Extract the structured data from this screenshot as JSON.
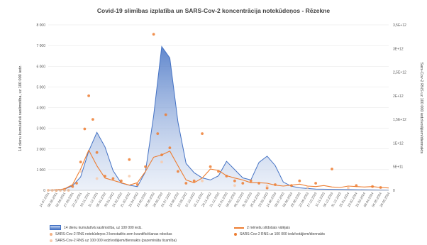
{
  "chart_data": {
    "type": "line",
    "title": "Covid-19 slimības izplatība un SARS-Cov-2 koncentrācija notekūdeņos - Rēzekne",
    "ylabel": "14 dienu kumulatīvā saslimstība, uz 100 000 iedz.",
    "y2label": "Sars-Cov-2 RNS uz 100 000 iedzīvotājiem/diennakts",
    "ylim": [
      0,
      8000
    ],
    "yticks": [
      "0",
      "1 000",
      "2 000",
      "3 000",
      "4 000",
      "5 000",
      "6 000",
      "7 000",
      "8 000"
    ],
    "y2ticks": [
      "0",
      "5E+11",
      "1E+12",
      "1,5E+12",
      "2E+12",
      "2,5E+12",
      "3E+12",
      "3,5E+12"
    ],
    "y2tick_values": [
      0,
      500000000000.0,
      1000000000000.0,
      1500000000000.0,
      2000000000000.0,
      2500000000000.0,
      3000000000000.0,
      3500000000000.0
    ],
    "y2lim": [
      0,
      3500000000000.0
    ],
    "x_categories": [
      "14.07.2021",
      "08.08.2021",
      "02.09.2021",
      "27.09.2021",
      "22.10.2021",
      "16.11.2021",
      "11.12.2021",
      "05.01.2022",
      "30.01.2022",
      "24.02.2022",
      "21.03.2022",
      "15.04.2022",
      "10.05.2022",
      "04.06.2022",
      "29.06.2022",
      "24.07.2022",
      "18.08.2022",
      "12.09.2022",
      "07.10.2022",
      "01.11.2022",
      "26.11.2022",
      "21.12.2022",
      "15.01.2023",
      "09.02.2023",
      "06.03.2023",
      "31.03.2023",
      "25.04.2023",
      "20.05.2023",
      "14.06.2023",
      "09.07.2023",
      "03.08.2023",
      "28.08.2023",
      "22.09.2023",
      "17.10.2023",
      "11.11.2023",
      "06.12.2023",
      "31.12.2023",
      "25.01.2024",
      "19.02.2024",
      "15.03.2024",
      "09.04.2024",
      "04.05.2024",
      "29.05.2024"
    ],
    "series": [
      {
        "name": "14 dienu kumulatīvā saslimstība, uz 100 000 iedz.",
        "axis": "left",
        "kind": "area",
        "color": "#4472c4",
        "x": [
          0,
          2,
          3,
          4,
          5,
          6,
          7,
          8,
          9,
          10,
          11,
          12,
          13,
          14,
          15,
          16,
          17,
          18,
          19,
          20,
          21,
          22,
          23,
          24,
          25,
          26,
          27,
          28,
          29,
          30,
          31,
          33,
          36,
          40,
          42
        ],
        "values": [
          0,
          60,
          220,
          650,
          1900,
          2800,
          2100,
          950,
          350,
          250,
          180,
          900,
          3600,
          6950,
          6400,
          3300,
          1300,
          850,
          600,
          500,
          700,
          1400,
          1000,
          600,
          500,
          1350,
          1650,
          1200,
          400,
          200,
          120,
          60,
          40,
          20,
          10
        ]
      },
      {
        "name": "2 mēnešu slīdošais vidējais",
        "axis": "right",
        "kind": "line",
        "color": "#ed7d31",
        "x": [
          0,
          1,
          2,
          3,
          4,
          5,
          6,
          7,
          8,
          9,
          10,
          11,
          12,
          13,
          14,
          15,
          16,
          17,
          18,
          19,
          20,
          21,
          22,
          23,
          24,
          25,
          26,
          27,
          28,
          29,
          30,
          31,
          32,
          33,
          34,
          35,
          36,
          37,
          38,
          39,
          40,
          41,
          42
        ],
        "values": [
          0,
          10000000000.0,
          30000000000.0,
          120000000000.0,
          450000000000.0,
          850000000000.0,
          520000000000.0,
          260000000000.0,
          210000000000.0,
          160000000000.0,
          110000000000.0,
          160000000000.0,
          400000000000.0,
          700000000000.0,
          750000000000.0,
          830000000000.0,
          520000000000.0,
          220000000000.0,
          160000000000.0,
          260000000000.0,
          450000000000.0,
          420000000000.0,
          310000000000.0,
          260000000000.0,
          220000000000.0,
          160000000000.0,
          160000000000.0,
          150000000000.0,
          110000000000.0,
          90000000000.0,
          110000000000.0,
          130000000000.0,
          90000000000.0,
          80000000000.0,
          100000000000.0,
          70000000000.0,
          60000000000.0,
          90000000000.0,
          80000000000.0,
          70000000000.0,
          80000000000.0,
          60000000000.0,
          50000000000.0
        ]
      },
      {
        "name": "SARS-Cov-2 RNS uz 100 000 iedzīvotājiem/diennakts",
        "axis": "right",
        "kind": "points",
        "color": "#ed7d31",
        "x": [
          1,
          2,
          3,
          3.5,
          4,
          4.5,
          5,
          5.5,
          6,
          7,
          8,
          9,
          10,
          11,
          12,
          13,
          13.5,
          14,
          14.5,
          15,
          16,
          17,
          18,
          19,
          20,
          21,
          22,
          23,
          24,
          25,
          26,
          27,
          28,
          30,
          31,
          33,
          35,
          38,
          40,
          41
        ],
        "values": [
          0,
          20000000000.0,
          80000000000.0,
          150000000000.0,
          600000000000.0,
          1300000000000.0,
          2000000000000.0,
          1500000000000.0,
          800000000000.0,
          300000000000.0,
          250000000000.0,
          200000000000.0,
          650000000000.0,
          120000000000.0,
          500000000000.0,
          3300000000000.0,
          1200000000000.0,
          750000000000.0,
          1600000000000.0,
          900000000000.0,
          400000000000.0,
          150000000000.0,
          200000000000.0,
          1200000000000.0,
          500000000000.0,
          400000000000.0,
          300000000000.0,
          200000000000.0,
          150000000000.0,
          200000000000.0,
          150000000000.0,
          50000000000.0,
          120000000000.0,
          100000000000.0,
          200000000000.0,
          150000000000.0,
          450000000000.0,
          100000000000.0,
          80000000000.0,
          60000000000.0
        ]
      },
      {
        "name": "SARS-Cov-2 RNS uz 100 000 iedzīvotājiem/diennakts (pazemināta ticamība)",
        "axis": "right",
        "kind": "points",
        "color": "#f8cbad",
        "x": [
          4,
          6,
          10,
          14,
          19,
          23,
          27,
          32,
          37
        ],
        "values": [
          400000000000.0,
          250000000000.0,
          300000000000.0,
          600000000000.0,
          200000000000.0,
          100000000000.0,
          90000000000.0,
          60000000000.0,
          50000000000.0
        ]
      },
      {
        "name": "SARS-Cov-2 RNS notekūdeņos 3 konstatēts zem kvantificēšanas robežas",
        "axis": "right",
        "kind": "points",
        "color": "#f4b183",
        "x": [
          0,
          0.5,
          1,
          1.5,
          2,
          2.5
        ],
        "values": [
          0,
          0,
          0,
          0,
          0,
          0
        ]
      }
    ]
  },
  "legend": {
    "items": [
      "14 dienu kumulatīvā saslimstība, uz 100 000 iedz.",
      "2 mēnešu slīdošais vidējais",
      "SARS-Cov-2 RNS notekūdeņos 3 konstatēts zem kvantificēšanas robežas",
      "SARS-Cov-2 RNS uz 100 000 iedzīvotājiem/diennakts",
      "SARS-Cov-2 RNS uz 100 000 iedzīvotājiem/diennakts (pazemināta ticamība)"
    ]
  },
  "colors": {
    "area": "#4472c4",
    "line": "#ed7d31",
    "grid": "#d9d9d9"
  }
}
